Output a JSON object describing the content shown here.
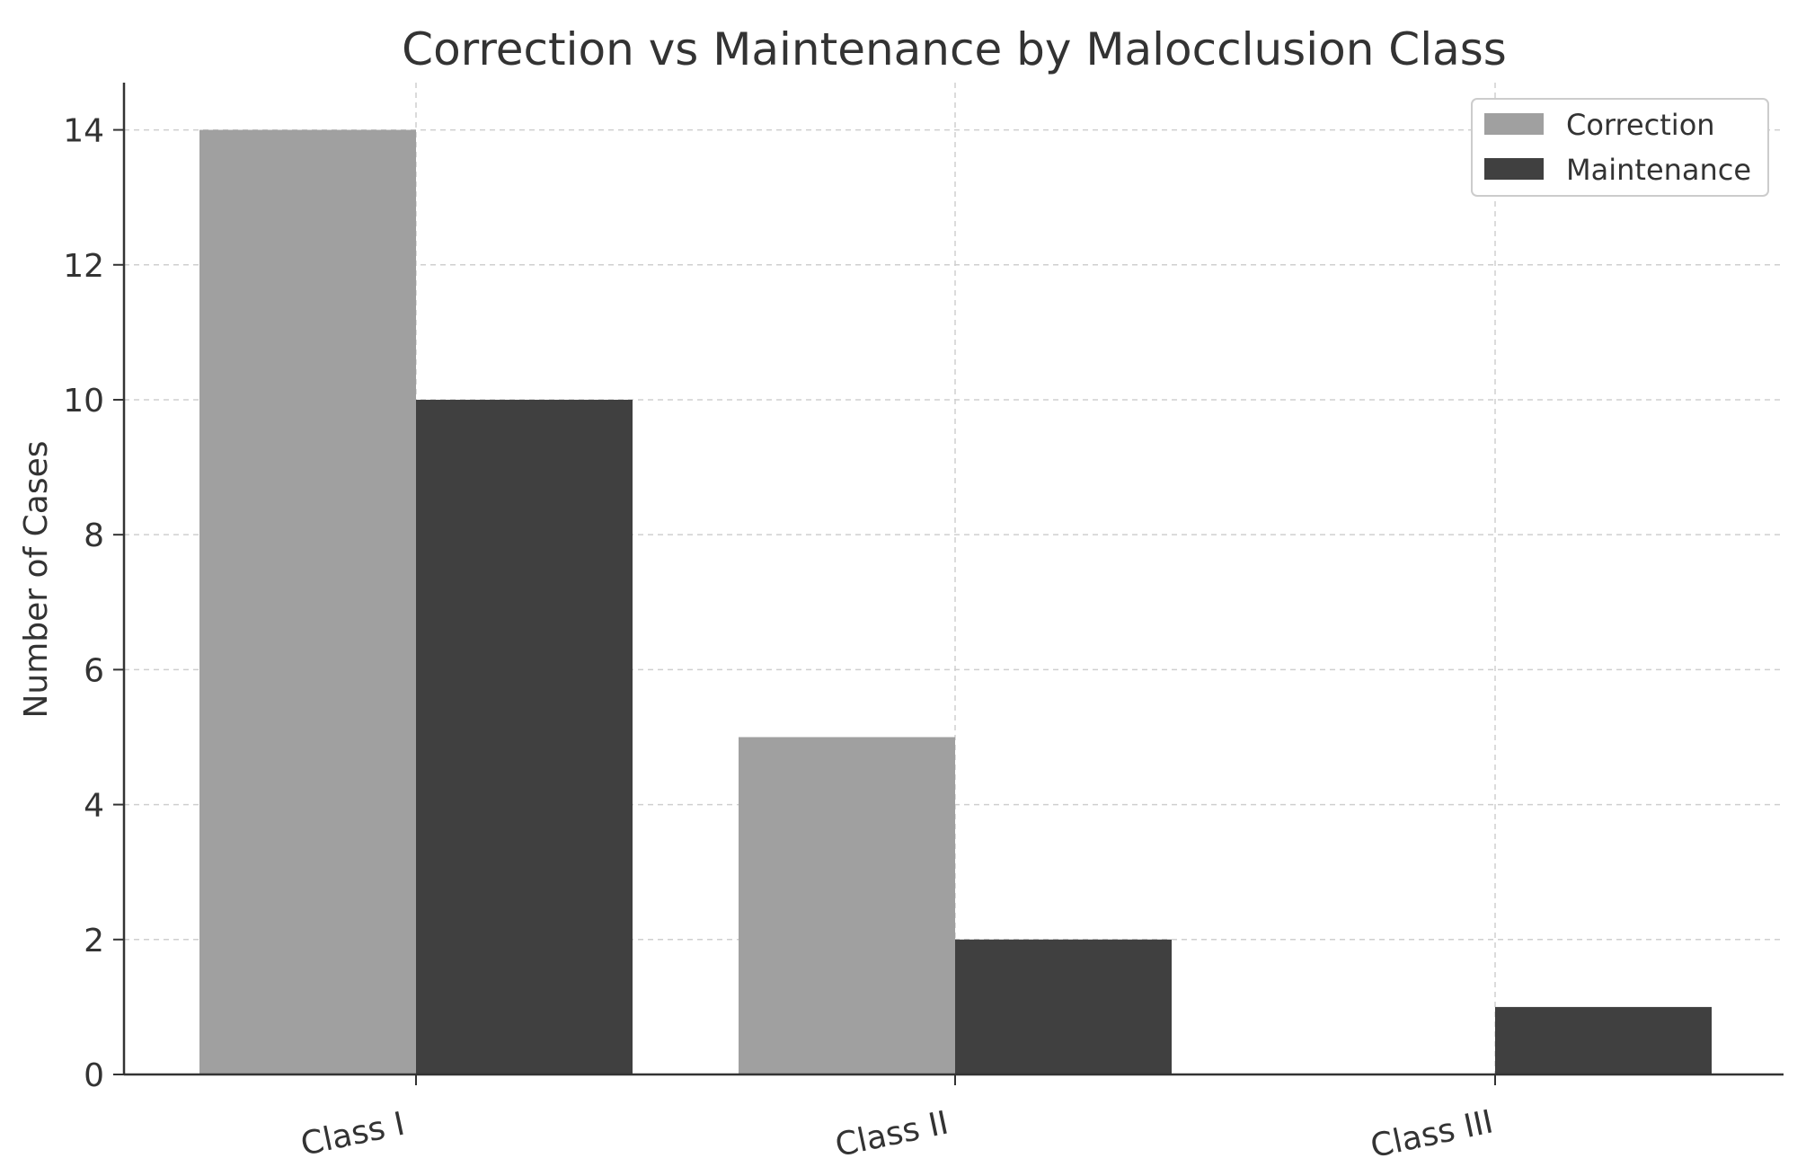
{
  "chart_data": {
    "type": "bar",
    "title": "Correction vs Maintenance by Malocclusion Class",
    "xlabel": "",
    "ylabel": "Number of Cases",
    "categories": [
      "Class I",
      "Class II",
      "Class III"
    ],
    "series": [
      {
        "name": "Correction",
        "values": [
          14,
          5,
          0
        ],
        "color": "#a0a0a0"
      },
      {
        "name": "Maintenance",
        "values": [
          10,
          2,
          1
        ],
        "color": "#404040"
      }
    ],
    "ylim": [
      0,
      14.7
    ],
    "yticks": [
      0,
      2,
      4,
      6,
      8,
      10,
      12,
      14
    ],
    "grid": true,
    "legend_position": "top-right",
    "x_tick_rotation": "slanted"
  }
}
